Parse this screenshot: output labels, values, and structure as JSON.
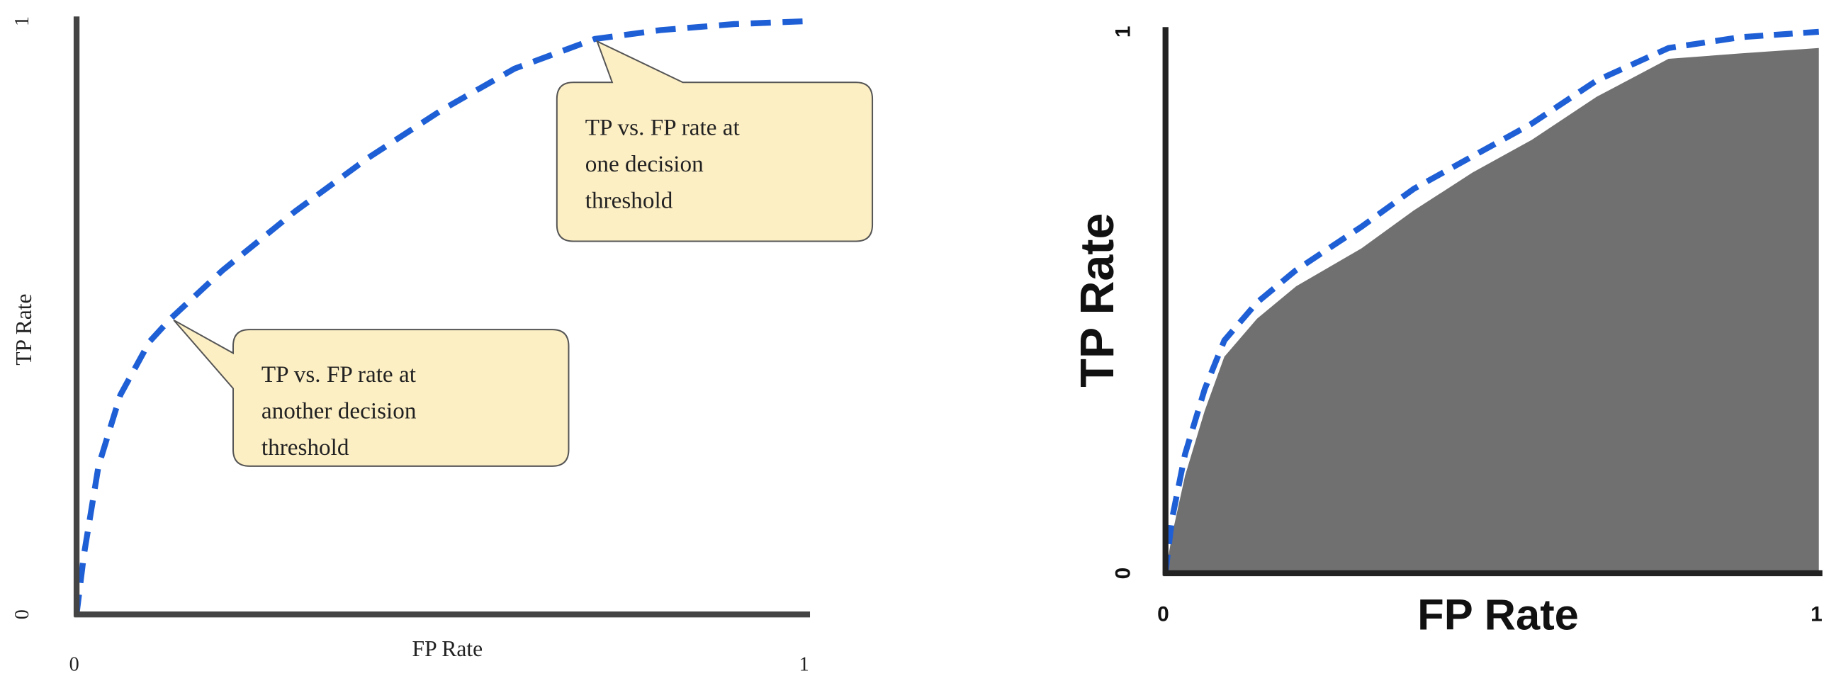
{
  "chart_data": [
    {
      "type": "line",
      "xlabel": "FP Rate",
      "ylabel": "TP Rate",
      "xlim": [
        0,
        1
      ],
      "ylim": [
        0,
        1
      ],
      "xticks": [
        0,
        1
      ],
      "yticks": [
        0,
        1
      ],
      "x": [
        0,
        0.01,
        0.03,
        0.06,
        0.1,
        0.13,
        0.2,
        0.3,
        0.4,
        0.5,
        0.6,
        0.71,
        0.8,
        0.9,
        1
      ],
      "series": [
        {
          "color": "#1f5fd6",
          "dashed": true,
          "fill": false,
          "values": [
            0,
            0.1,
            0.25,
            0.37,
            0.46,
            0.5,
            0.58,
            0.68,
            0.77,
            0.85,
            0.92,
            0.97,
            0.985,
            0.995,
            1
          ]
        }
      ],
      "annotations": [
        {
          "lines": [
            "TP vs. FP rate at",
            "one decision",
            "threshold"
          ],
          "x": 0.71,
          "y": 0.97
        },
        {
          "lines": [
            "TP vs. FP rate at",
            "another decision",
            "threshold"
          ],
          "x": 0.13,
          "y": 0.5
        }
      ]
    },
    {
      "type": "line",
      "xlabel": "FP Rate",
      "ylabel": "TP Rate",
      "xlim": [
        0,
        1
      ],
      "ylim": [
        0,
        1
      ],
      "xticks": [
        0,
        1
      ],
      "yticks": [
        0,
        1
      ],
      "x": [
        0,
        0.01,
        0.03,
        0.06,
        0.09,
        0.14,
        0.2,
        0.3,
        0.38,
        0.47,
        0.56,
        0.66,
        0.77,
        0.88,
        1
      ],
      "series": [
        {
          "color": "#707070",
          "dashed": false,
          "fill": true,
          "values": [
            0,
            0.07,
            0.18,
            0.3,
            0.4,
            0.47,
            0.53,
            0.6,
            0.67,
            0.74,
            0.8,
            0.88,
            0.95,
            0.96,
            0.97
          ]
        },
        {
          "color": "#1f5fd6",
          "dashed": true,
          "fill": false,
          "values": [
            0,
            0.1,
            0.22,
            0.34,
            0.43,
            0.5,
            0.56,
            0.64,
            0.71,
            0.77,
            0.83,
            0.91,
            0.97,
            0.99,
            1
          ]
        }
      ]
    }
  ]
}
